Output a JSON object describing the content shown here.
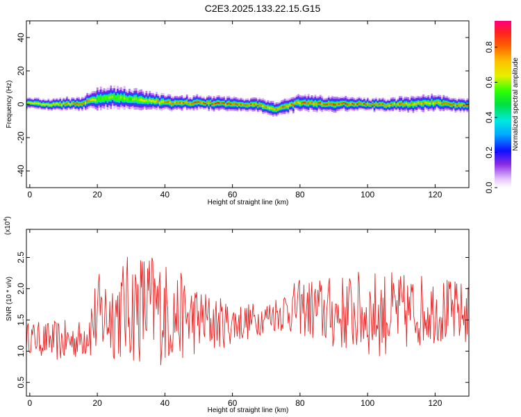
{
  "chart_data": [
    {
      "type": "heatmap",
      "title": "C2E3.2025.133.22.15.G15",
      "xlabel": "Height of straight line (km)",
      "ylabel": "Frequency (Hz)",
      "xlim": [
        -1,
        130
      ],
      "ylim": [
        -50,
        50
      ],
      "xticks": [
        "0",
        "20",
        "40",
        "60",
        "80",
        "100",
        "120"
      ],
      "yticks": [
        "40",
        "20",
        "0",
        "-20",
        "-40"
      ],
      "colorbar": {
        "label": "Normalized spectral amplitude",
        "range": [
          0,
          0.95
        ],
        "ticks": [
          "0.0",
          "0.2",
          "0.4",
          "0.6",
          "0.8"
        ]
      },
      "ridge": {
        "x": [
          0,
          5,
          10,
          15,
          18,
          20,
          25,
          30,
          35,
          40,
          45,
          50,
          55,
          60,
          65,
          68,
          70,
          72,
          75,
          80,
          85,
          90,
          95,
          100,
          105,
          110,
          115,
          120,
          125,
          130
        ],
        "center_hz": [
          0.5,
          -0.5,
          0,
          0.5,
          2,
          3,
          4,
          3,
          2,
          1,
          0.5,
          1,
          0.5,
          0,
          0,
          -0.5,
          -2,
          -3,
          -1.5,
          1,
          0.5,
          0,
          0.5,
          0,
          -0.5,
          0,
          0.5,
          1,
          0,
          -0.5
        ],
        "spread_hz": [
          3,
          3,
          3.5,
          3.5,
          4.5,
          6,
          6,
          6,
          5,
          4.5,
          4,
          4,
          4,
          4,
          3.5,
          4,
          4,
          4,
          4,
          4.5,
          4.5,
          4,
          4,
          3.5,
          3.5,
          4,
          4.5,
          4.5,
          4,
          3.5
        ],
        "peak_amplitude": [
          0.7,
          0.75,
          0.8,
          0.85,
          0.8,
          0.6,
          0.65,
          0.6,
          0.7,
          0.85,
          0.85,
          0.9,
          0.9,
          0.9,
          0.9,
          0.85,
          0.8,
          0.8,
          0.85,
          0.85,
          0.9,
          0.9,
          0.9,
          0.9,
          0.85,
          0.85,
          0.8,
          0.8,
          0.85,
          0.9
        ]
      }
    },
    {
      "type": "line",
      "xlabel": "Height of straight line (km)",
      "ylabel": "SNR (10 * v/v)",
      "scale_label": "(x10^4)",
      "xlim": [
        -1,
        130
      ],
      "ylim": [
        0.28,
        2.95
      ],
      "xticks": [
        "0",
        "20",
        "40",
        "60",
        "80",
        "100",
        "120"
      ],
      "yticks": [
        "0.5",
        "1.0",
        "1.5",
        "2.0",
        "2.5"
      ],
      "series": [
        {
          "color": "#e52121",
          "x": [
            0,
            5,
            10,
            15,
            18,
            20,
            25,
            30,
            35,
            40,
            45,
            50,
            55,
            60,
            65,
            70,
            75,
            80,
            85,
            90,
            95,
            100,
            105,
            110,
            115,
            120,
            125,
            130
          ],
          "mean": [
            1.22,
            1.18,
            1.15,
            1.2,
            1.4,
            1.55,
            1.6,
            1.7,
            1.72,
            1.62,
            1.55,
            1.5,
            1.45,
            1.45,
            1.48,
            1.55,
            1.65,
            1.7,
            1.65,
            1.6,
            1.62,
            1.6,
            1.6,
            1.6,
            1.65,
            1.68,
            1.6,
            1.6
          ],
          "amplitude": [
            0.25,
            0.3,
            0.35,
            0.3,
            0.55,
            0.7,
            0.75,
            0.9,
            0.95,
            0.85,
            0.7,
            0.55,
            0.45,
            0.35,
            0.3,
            0.25,
            0.35,
            0.45,
            0.55,
            0.6,
            0.65,
            0.7,
            0.7,
            0.65,
            0.6,
            0.55,
            0.55,
            0.5
          ]
        }
      ]
    }
  ]
}
